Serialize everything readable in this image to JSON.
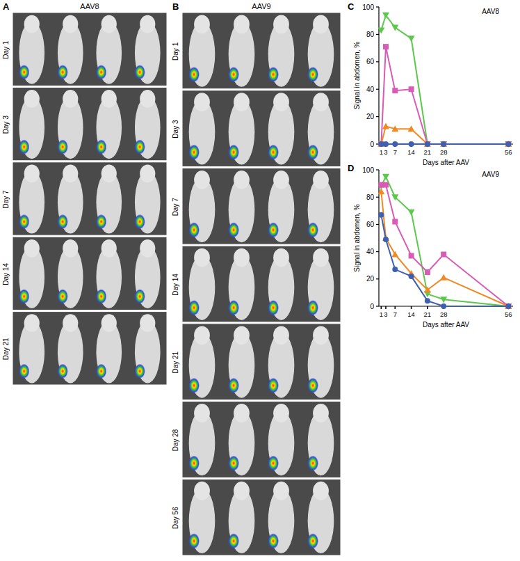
{
  "image_panels": [
    {
      "label": "A",
      "title": "AAV8",
      "rows": [
        "Day 1",
        "Day 3",
        "Day 7",
        "Day 14",
        "Day 21"
      ]
    },
    {
      "label": "B",
      "title": "AAV9",
      "rows": [
        "Day 1",
        "Day 3",
        "Day 7",
        "Day 14",
        "Day 21",
        "Day 28",
        "Day 56"
      ]
    }
  ],
  "chart_panel_labels": [
    "C",
    "D"
  ],
  "chart_data": [
    {
      "type": "line",
      "title": "AAV8",
      "x_label": "Days after AAV",
      "y_label": "Signal in abdomen, %",
      "x": [
        1,
        3,
        7,
        14,
        21,
        28,
        56
      ],
      "xlim": [
        0,
        58
      ],
      "xticks": [
        1,
        3,
        7,
        14,
        21,
        28,
        56
      ],
      "ylim": [
        0,
        100
      ],
      "yticks": [
        0,
        20,
        40,
        60,
        80,
        100
      ],
      "grid": false,
      "series": [
        {
          "color": "#5cc84b",
          "marker": "triangle-down",
          "values": [
            83,
            94,
            85,
            77,
            0,
            0,
            0
          ]
        },
        {
          "color": "#d85bb5",
          "marker": "square",
          "values": [
            0,
            71,
            39,
            40,
            0,
            0,
            0
          ]
        },
        {
          "color": "#f08a24",
          "marker": "triangle-up",
          "values": [
            0,
            13,
            11,
            11,
            0,
            0,
            0
          ]
        },
        {
          "color": "#3f5fb0",
          "marker": "circle",
          "values": [
            0,
            0,
            0,
            0,
            0,
            0,
            0
          ]
        }
      ]
    },
    {
      "type": "line",
      "title": "AAV9",
      "x_label": "Days after AAV",
      "y_label": "Signal in abdomen, %",
      "x": [
        1,
        3,
        7,
        14,
        21,
        28,
        56
      ],
      "xlim": [
        0,
        58
      ],
      "xticks": [
        1,
        3,
        7,
        14,
        21,
        28,
        56
      ],
      "ylim": [
        0,
        100
      ],
      "yticks": [
        0,
        20,
        40,
        60,
        80,
        100
      ],
      "grid": false,
      "series": [
        {
          "color": "#5cc84b",
          "marker": "triangle-down",
          "values": [
            88,
            95,
            80,
            69,
            9,
            5,
            0
          ]
        },
        {
          "color": "#d85bb5",
          "marker": "square",
          "values": [
            89,
            89,
            62,
            37,
            25,
            38,
            0
          ]
        },
        {
          "color": "#f08a24",
          "marker": "triangle-up",
          "values": [
            84,
            50,
            38,
            24,
            12,
            21,
            0
          ]
        },
        {
          "color": "#3f5fb0",
          "marker": "circle",
          "values": [
            67,
            49,
            27,
            22,
            4,
            0,
            0
          ]
        }
      ]
    }
  ]
}
